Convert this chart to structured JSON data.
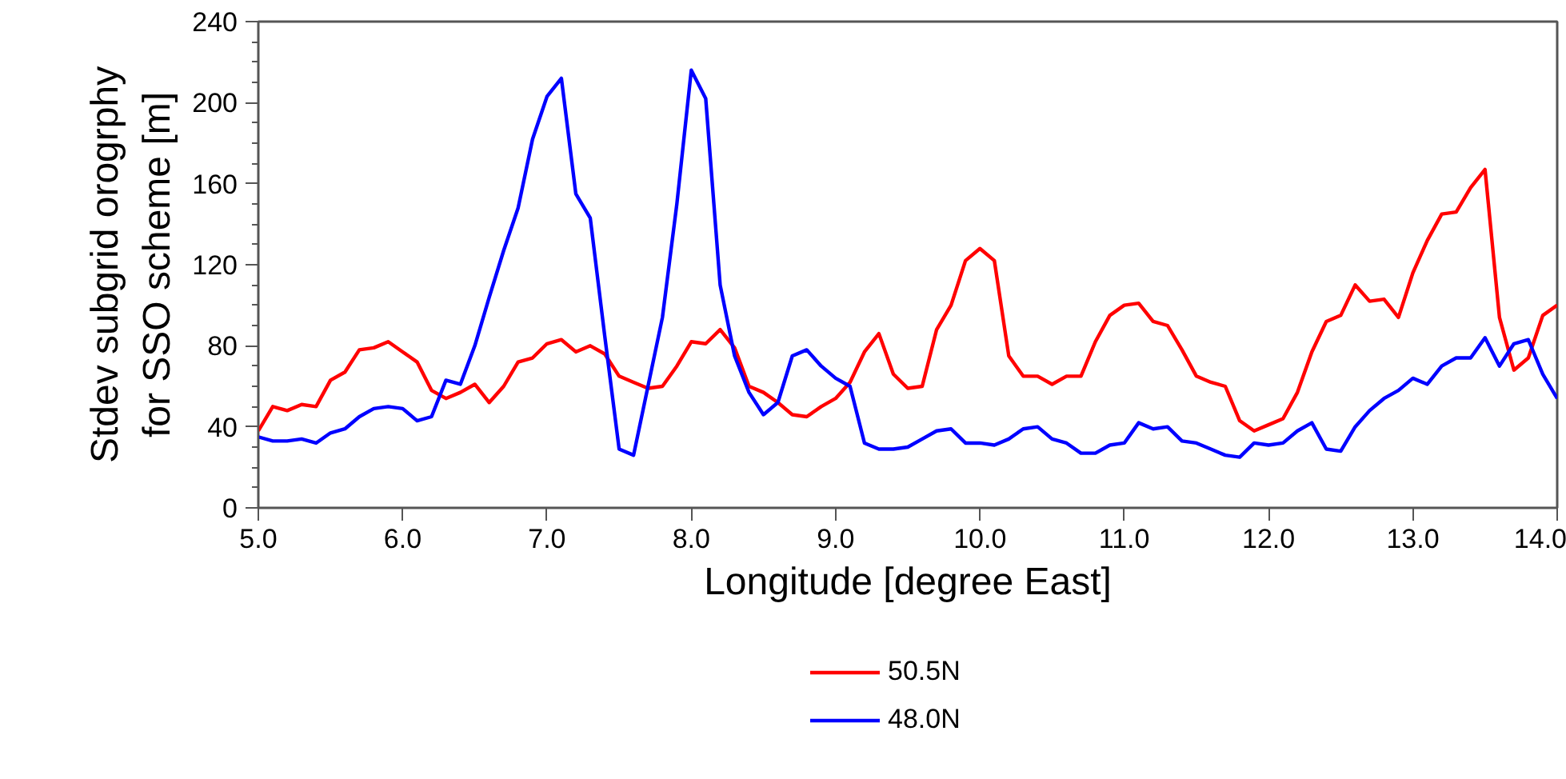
{
  "chart_data": {
    "type": "line",
    "xlabel": "Longitude [degree East]",
    "ylabel": "Stdev subgrid orogrphy\nfor SSO scheme [m]",
    "x": [
      5.0,
      5.1,
      5.2,
      5.3,
      5.4,
      5.5,
      5.6,
      5.7,
      5.8,
      5.9,
      6.0,
      6.1,
      6.2,
      6.3,
      6.4,
      6.5,
      6.6,
      6.7,
      6.8,
      6.9,
      7.0,
      7.1,
      7.2,
      7.3,
      7.4,
      7.5,
      7.6,
      7.7,
      7.8,
      7.9,
      8.0,
      8.1,
      8.2,
      8.3,
      8.4,
      8.5,
      8.6,
      8.7,
      8.8,
      8.9,
      9.0,
      9.1,
      9.2,
      9.3,
      9.4,
      9.5,
      9.6,
      9.7,
      9.8,
      9.9,
      10.0,
      10.1,
      10.2,
      10.3,
      10.4,
      10.5,
      10.6,
      10.7,
      10.8,
      10.9,
      11.0,
      11.1,
      11.2,
      11.3,
      11.4,
      11.5,
      11.6,
      11.7,
      11.8,
      11.9,
      12.0,
      12.1,
      12.2,
      12.3,
      12.4,
      12.5,
      12.6,
      12.7,
      12.8,
      12.9,
      13.0,
      13.1,
      13.2,
      13.3,
      13.4,
      13.5,
      13.6,
      13.7,
      13.8,
      13.9,
      14.0
    ],
    "series": [
      {
        "name": "50.5N",
        "color": "#ff0000",
        "values": [
          38,
          50,
          48,
          51,
          50,
          63,
          67,
          78,
          79,
          82,
          77,
          72,
          58,
          54,
          57,
          61,
          52,
          60,
          72,
          74,
          81,
          83,
          77,
          80,
          76,
          65,
          62,
          59,
          60,
          70,
          82,
          81,
          88,
          79,
          60,
          57,
          52,
          46,
          45,
          50,
          54,
          62,
          77,
          86,
          66,
          59,
          60,
          88,
          100,
          122,
          128,
          122,
          75,
          65,
          65,
          61,
          65,
          65,
          82,
          95,
          100,
          101,
          92,
          90,
          78,
          65,
          62,
          60,
          43,
          38,
          41,
          44,
          57,
          77,
          92,
          95,
          110,
          102,
          103,
          94,
          116,
          132,
          145,
          146,
          158,
          167,
          94,
          68,
          74,
          95,
          100
        ]
      },
      {
        "name": "48.0N",
        "color": "#0000ff",
        "values": [
          35,
          33,
          33,
          34,
          32,
          37,
          39,
          45,
          49,
          50,
          49,
          43,
          45,
          63,
          61,
          80,
          104,
          127,
          148,
          182,
          203,
          212,
          155,
          143,
          85,
          29,
          26,
          60,
          94,
          150,
          216,
          202,
          110,
          75,
          57,
          46,
          52,
          75,
          78,
          70,
          64,
          60,
          32,
          29,
          29,
          30,
          34,
          38,
          39,
          32,
          32,
          31,
          34,
          39,
          40,
          34,
          32,
          27,
          27,
          31,
          32,
          42,
          39,
          40,
          33,
          32,
          29,
          26,
          25,
          32,
          31,
          32,
          38,
          42,
          29,
          28,
          40,
          48,
          54,
          58,
          64,
          61,
          70,
          74,
          74,
          84,
          70,
          81,
          83,
          66,
          54
        ]
      }
    ],
    "xlim": [
      5.0,
      14.0
    ],
    "xticks": [
      {
        "value": 5,
        "label": "5.0"
      },
      {
        "value": 6,
        "label": "6.0"
      },
      {
        "value": 7,
        "label": "7.0"
      },
      {
        "value": 8,
        "label": "8.0"
      },
      {
        "value": 9,
        "label": "9.0"
      },
      {
        "value": 10,
        "label": "10.0"
      },
      {
        "value": 11,
        "label": "11.0"
      },
      {
        "value": 12,
        "label": "12.0"
      },
      {
        "value": 13,
        "label": "13.0"
      },
      {
        "value": 14,
        "label": "14.0"
      }
    ],
    "ylim": [
      0,
      240
    ],
    "yticks": [
      0,
      {
        "value": 10,
        "label": null
      },
      {
        "value": 20,
        "label": null
      },
      {
        "value": 30,
        "label": null
      },
      40,
      {
        "value": 50,
        "label": null
      },
      {
        "value": 60,
        "label": null
      },
      {
        "value": 70,
        "label": null
      },
      80,
      {
        "value": 90,
        "label": null
      },
      {
        "value": 100,
        "label": null
      },
      {
        "value": 110,
        "label": null
      },
      120,
      {
        "value": 130,
        "label": null
      },
      {
        "value": 140,
        "label": null
      },
      {
        "value": 150,
        "label": null
      },
      160,
      {
        "value": 170,
        "label": null
      },
      {
        "value": 180,
        "label": null
      },
      {
        "value": 190,
        "label": null
      },
      200,
      {
        "value": 210,
        "label": null
      },
      {
        "value": 220,
        "label": null
      },
      {
        "value": 230,
        "label": null
      },
      240
    ],
    "grid": false,
    "legend": "bottom",
    "line_style": "solid",
    "marker": "none"
  }
}
